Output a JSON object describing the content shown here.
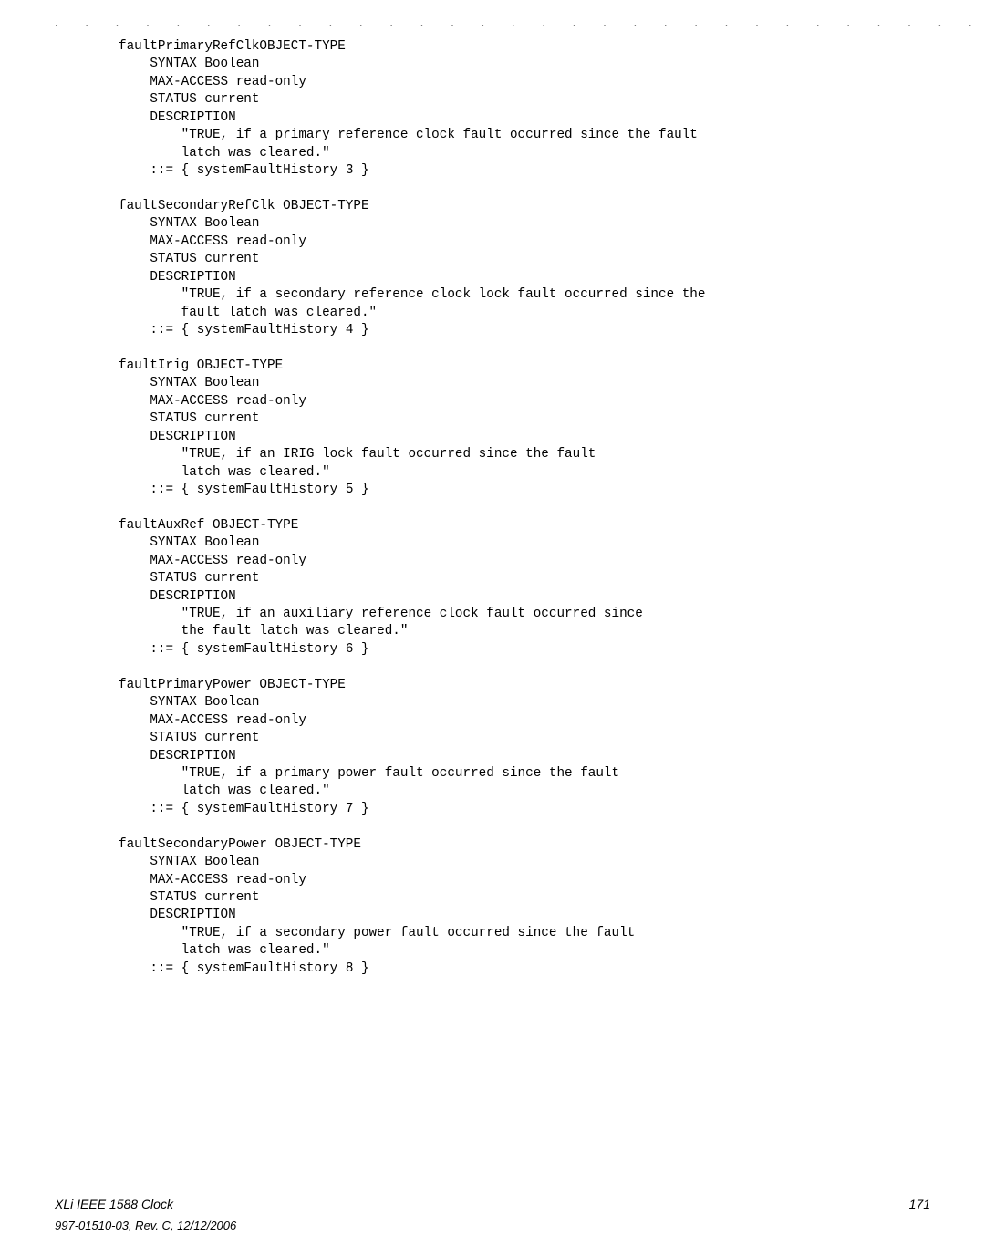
{
  "dots_row": ". . . . . . . . . . . . . . . . . . . . . . . . . . . . . . . . . . . . . . . . . . . . . . .",
  "blocks": [
    {
      "name": "faultPrimaryRefClkOBJECT-TYPE",
      "syntax": "SYNTAX Boolean",
      "access": "MAX-ACCESS read-only",
      "status": "STATUS current",
      "desc_label": "DESCRIPTION",
      "desc_line1": "\"TRUE, if a primary reference clock fault occurred since the fault",
      "desc_line2": "latch was cleared.\"",
      "assign": "::= { systemFaultHistory 3 }"
    },
    {
      "name": "faultSecondaryRefClk OBJECT-TYPE",
      "syntax": "SYNTAX Boolean",
      "access": "MAX-ACCESS read-only",
      "status": "STATUS current",
      "desc_label": "DESCRIPTION",
      "desc_line1": "\"TRUE, if a secondary reference clock lock fault occurred since the",
      "desc_line2": "fault latch was cleared.\"",
      "assign": "::= { systemFaultHistory 4 }"
    },
    {
      "name": "faultIrig OBJECT-TYPE",
      "syntax": "SYNTAX Boolean",
      "access": "MAX-ACCESS read-only",
      "status": "STATUS current",
      "desc_label": "DESCRIPTION",
      "desc_line1": "\"TRUE, if an IRIG lock fault occurred since the fault",
      "desc_line2": "latch was cleared.\"",
      "assign": "::= { systemFaultHistory 5 }"
    },
    {
      "name": "faultAuxRef OBJECT-TYPE",
      "syntax": "SYNTAX Boolean",
      "access": "MAX-ACCESS read-only",
      "status": "STATUS current",
      "desc_label": "DESCRIPTION",
      "desc_line1": "\"TRUE, if an auxiliary reference clock fault occurred since",
      "desc_line2": "the fault latch was cleared.\"",
      "assign": "::= { systemFaultHistory 6 }"
    },
    {
      "name": "faultPrimaryPower OBJECT-TYPE",
      "syntax": "SYNTAX Boolean",
      "access": "MAX-ACCESS read-only",
      "status": "STATUS current",
      "desc_label": "DESCRIPTION",
      "desc_line1": "\"TRUE, if a primary power fault occurred since the fault",
      "desc_line2": "latch was cleared.\"",
      "assign": "::= { systemFaultHistory 7 }"
    },
    {
      "name": "faultSecondaryPower OBJECT-TYPE",
      "syntax": "SYNTAX Boolean",
      "access": "MAX-ACCESS read-only",
      "status": "STATUS current",
      "desc_label": "DESCRIPTION",
      "desc_line1": "\"TRUE, if a secondary power fault occurred since the fault",
      "desc_line2": "latch was cleared.\"",
      "assign": "::= { systemFaultHistory 8 }"
    }
  ],
  "footer": {
    "title": "XLi IEEE 1588 Clock",
    "pagenum": "171",
    "rev": "997-01510-03, Rev. C, 12/12/2006"
  }
}
